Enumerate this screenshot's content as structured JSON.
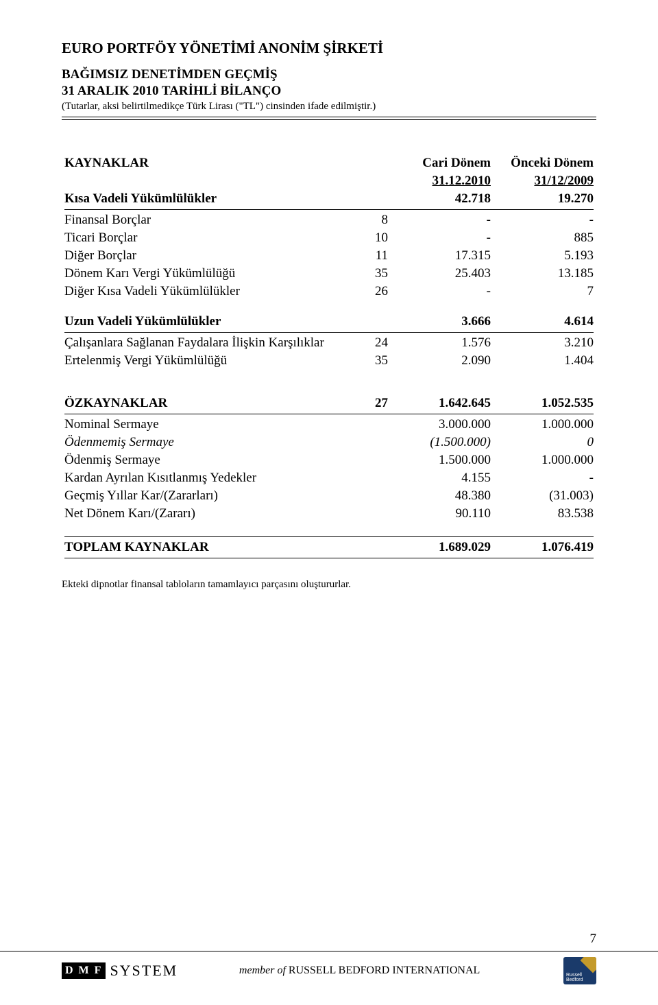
{
  "header": {
    "company": "EURO PORTFÖY YÖNETİMİ ANONİM ŞİRKETİ",
    "line1": "BAĞIMSIZ DENETİMDEN GEÇMİŞ",
    "line2": "31 ARALIK 2010 TARİHLİ BİLANÇO",
    "note": "(Tutarlar, aksi belirtilmedikçe Türk Lirası (\"TL\") cinsinden ifade edilmiştir.)"
  },
  "colhead": {
    "cari": "Cari Dönem",
    "cari_date": "31.12.2010",
    "onceki": "Önceki Dönem",
    "onceki_date": "31/12/2009"
  },
  "sections": {
    "kaynaklar": "KAYNAKLAR",
    "kisa": {
      "label": "Kısa Vadeli Yükümlülükler",
      "cari": "42.718",
      "once": "19.270"
    },
    "kisa_rows": [
      {
        "label": "Finansal Borçlar",
        "note": "8",
        "cari": "-",
        "once": "-"
      },
      {
        "label": "Ticari Borçlar",
        "note": "10",
        "cari": "-",
        "once": "885"
      },
      {
        "label": "Diğer Borçlar",
        "note": "11",
        "cari": "17.315",
        "once": "5.193"
      },
      {
        "label": "Dönem Karı Vergi Yükümlülüğü",
        "note": "35",
        "cari": "25.403",
        "once": "13.185"
      },
      {
        "label": "Diğer Kısa Vadeli Yükümlülükler",
        "note": "26",
        "cari": "-",
        "once": "7"
      }
    ],
    "uzun": {
      "label": "Uzun Vadeli Yükümlülükler",
      "cari": "3.666",
      "once": "4.614"
    },
    "uzun_rows": [
      {
        "label": "Çalışanlara Sağlanan Faydalara İlişkin Karşılıklar",
        "note": "24",
        "cari": "1.576",
        "once": "3.210"
      },
      {
        "label": "Ertelenmiş Vergi Yükümlülüğü",
        "note": "35",
        "cari": "2.090",
        "once": "1.404"
      }
    ],
    "ozkaynaklar": {
      "label": "ÖZKAYNAKLAR",
      "note": "27",
      "cari": "1.642.645",
      "once": "1.052.535"
    },
    "oz_rows": [
      {
        "label": "Nominal Sermaye",
        "note": "",
        "cari": "3.000.000",
        "once": "1.000.000",
        "italic": false
      },
      {
        "label": "Ödenmemiş Sermaye",
        "note": "",
        "cari": "(1.500.000)",
        "once": "0",
        "italic": true
      },
      {
        "label": "Ödenmiş Sermaye",
        "note": "",
        "cari": "1.500.000",
        "once": "1.000.000",
        "italic": false
      },
      {
        "label": "Kardan Ayrılan Kısıtlanmış Yedekler",
        "note": "",
        "cari": "4.155",
        "once": "-",
        "italic": false
      },
      {
        "label": "Geçmiş Yıllar Kar/(Zararları)",
        "note": "",
        "cari": "48.380",
        "once": "(31.003)",
        "italic": false
      },
      {
        "label": "Net Dönem Karı/(Zararı)",
        "note": "",
        "cari": "90.110",
        "once": "83.538",
        "italic": false
      }
    ],
    "toplam": {
      "label": "TOPLAM KAYNAKLAR",
      "cari": "1.689.029",
      "once": "1.076.419"
    }
  },
  "footnote": "Ekteki dipnotlar finansal tabloların tamamlayıcı parçasını oluştururlar.",
  "footer": {
    "logo_letters": "D M F",
    "logo_system": "SYSTEM",
    "member_prefix": "member of ",
    "member_name": "RUSSELL BEDFORD INTERNATIONAL",
    "badge_text": "Russell Bedford"
  },
  "page_number": "7"
}
